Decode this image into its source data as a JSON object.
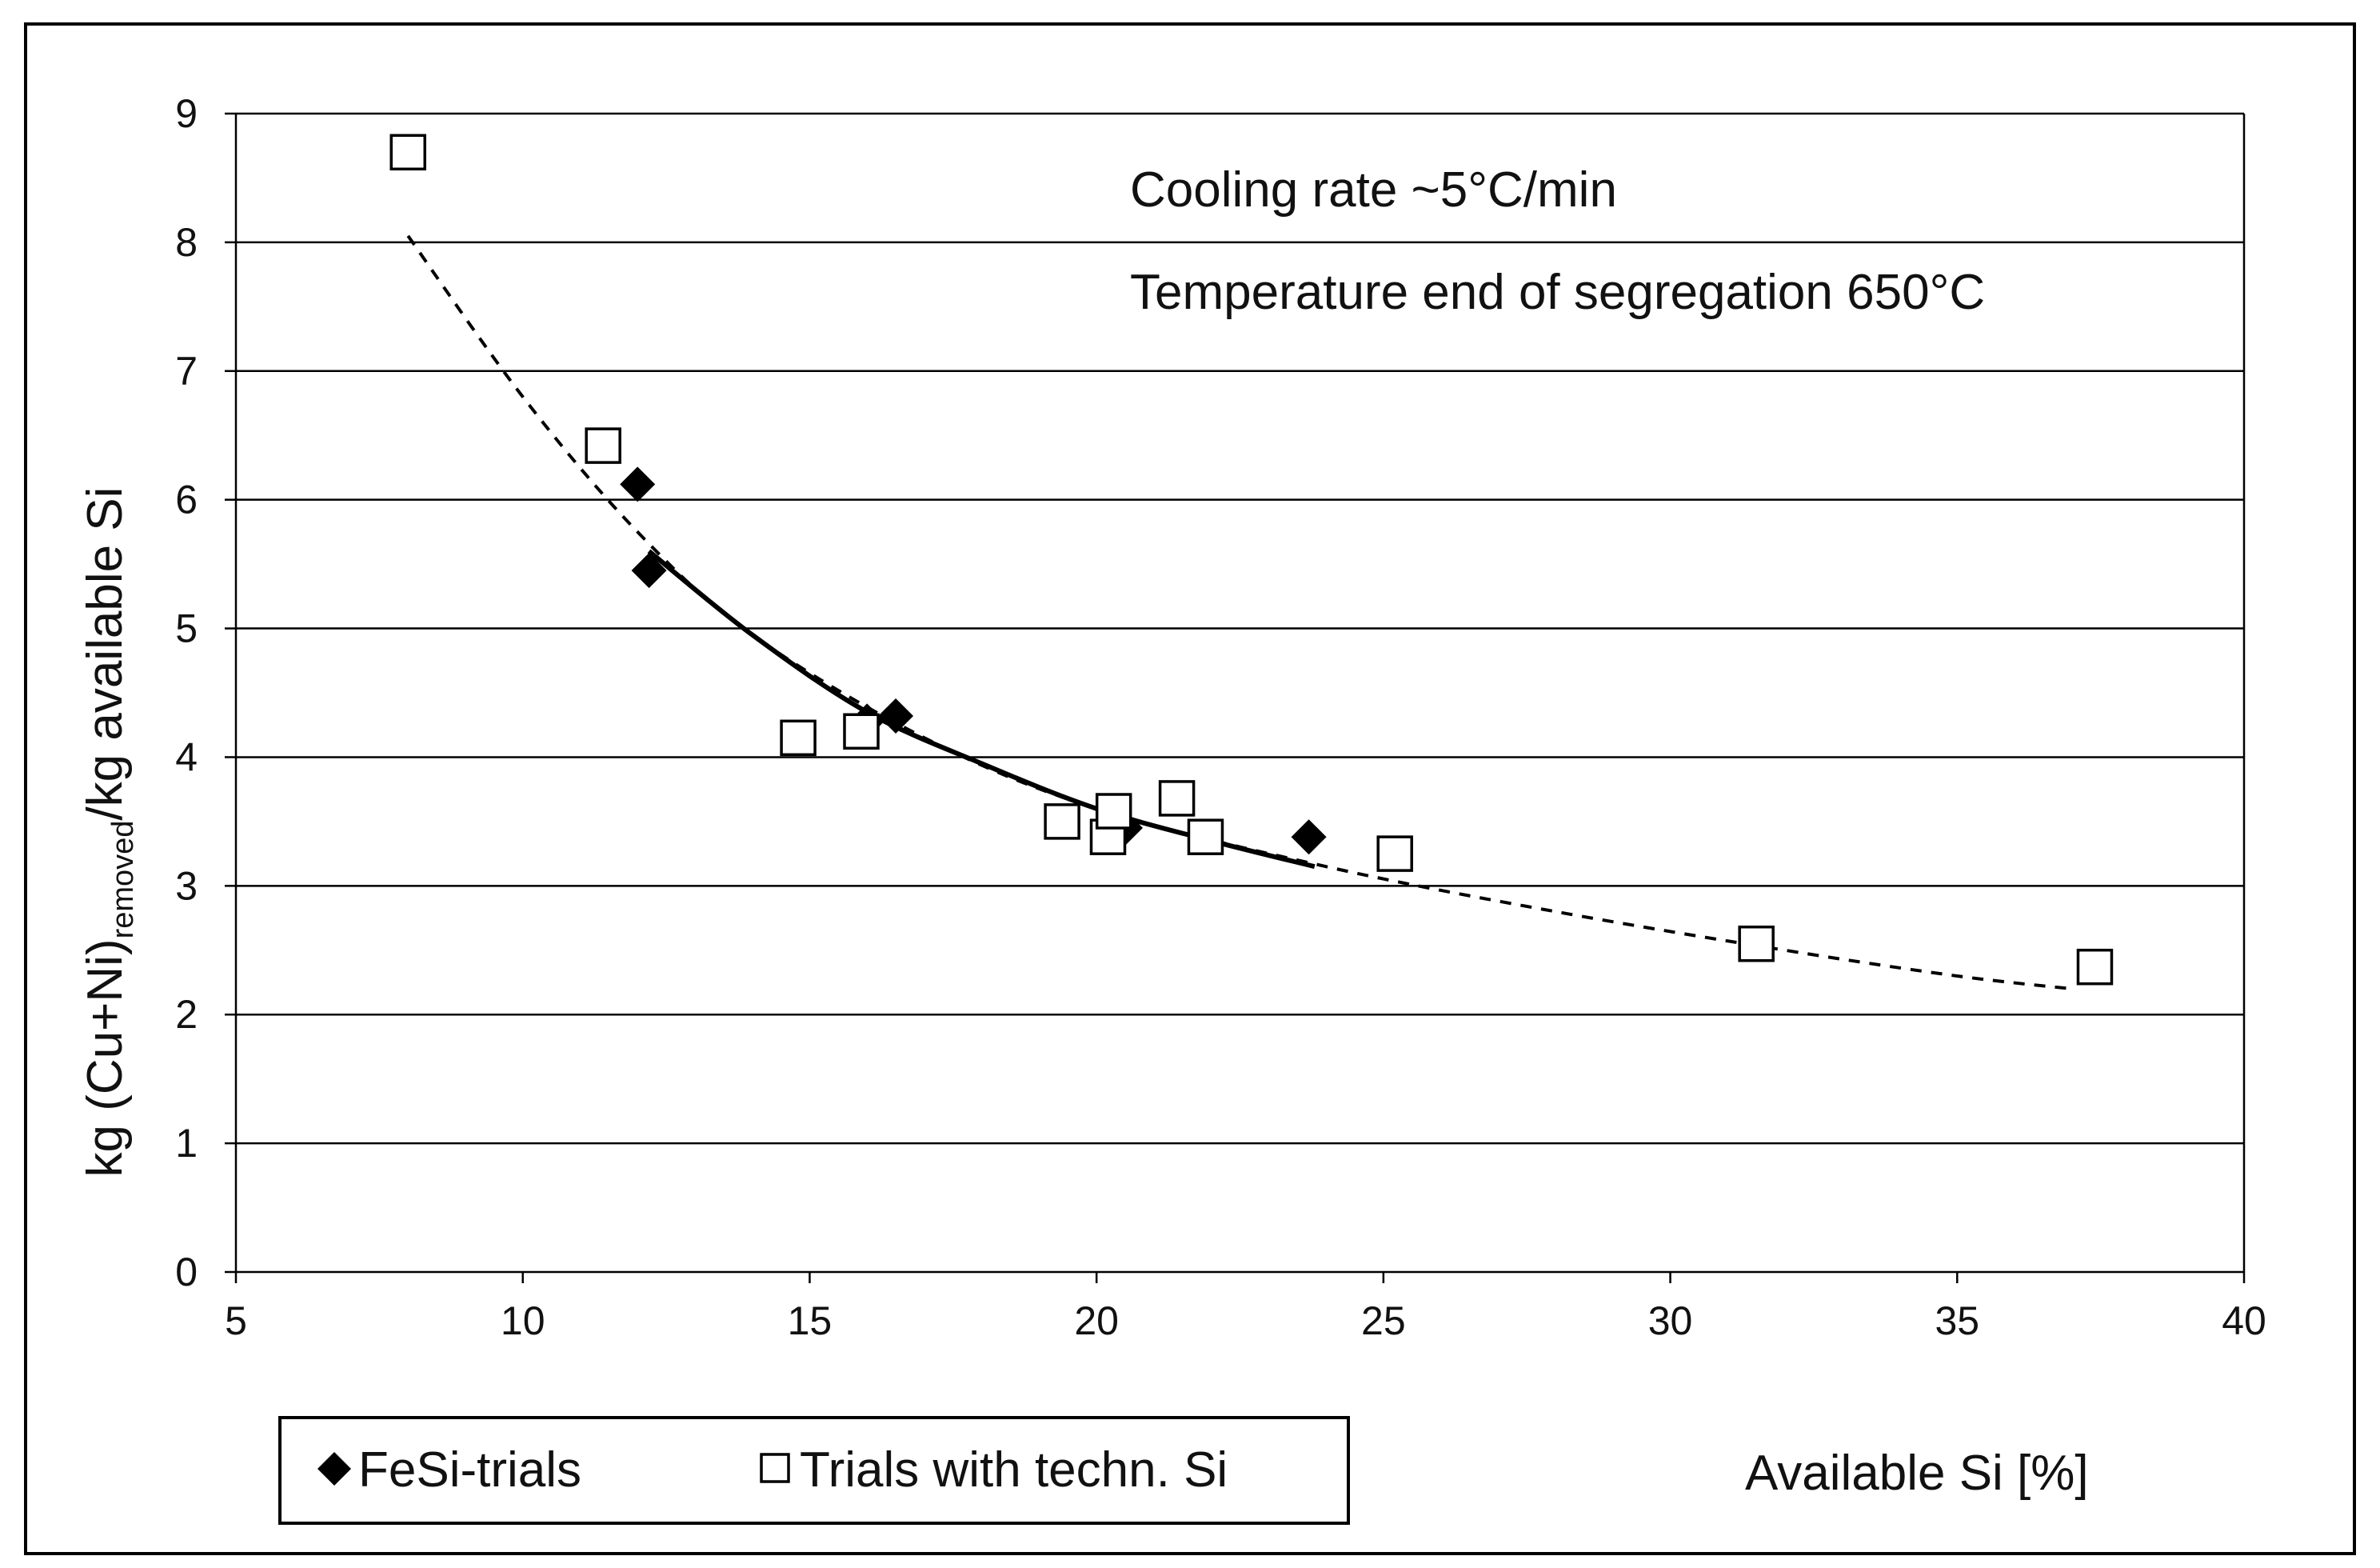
{
  "chart_data": {
    "type": "scatter",
    "title": "",
    "xlabel": "Available Si [%]",
    "ylabel_parts": {
      "main": "kg (Cu+Ni)",
      "sub": "removed",
      "tail": "/kg available Si"
    },
    "xlim": [
      5,
      40
    ],
    "ylim": [
      0,
      9
    ],
    "x_ticks": [
      5,
      10,
      15,
      20,
      25,
      30,
      35,
      40
    ],
    "y_ticks": [
      0,
      1,
      2,
      3,
      4,
      5,
      6,
      7,
      8,
      9
    ],
    "grid": "horizontal",
    "annotations": [
      "Cooling rate ~5°C/min",
      "Temperature end of segregation 650°C"
    ],
    "legend_position": "bottom-left",
    "series": [
      {
        "name": "FeSi-trials",
        "marker": "filled-diamond",
        "points": [
          {
            "x": 12.0,
            "y": 6.12
          },
          {
            "x": 12.2,
            "y": 5.45
          },
          {
            "x": 16.0,
            "y": 4.28
          },
          {
            "x": 16.5,
            "y": 4.32
          },
          {
            "x": 20.5,
            "y": 3.45
          },
          {
            "x": 23.7,
            "y": 3.38
          }
        ]
      },
      {
        "name": "Trials with techn. Si",
        "marker": "open-square",
        "points": [
          {
            "x": 8.0,
            "y": 8.7
          },
          {
            "x": 11.4,
            "y": 6.42
          },
          {
            "x": 14.8,
            "y": 4.15
          },
          {
            "x": 15.9,
            "y": 4.2
          },
          {
            "x": 19.4,
            "y": 3.5
          },
          {
            "x": 20.2,
            "y": 3.38
          },
          {
            "x": 20.3,
            "y": 3.58
          },
          {
            "x": 21.4,
            "y": 3.68
          },
          {
            "x": 21.9,
            "y": 3.38
          },
          {
            "x": 25.2,
            "y": 3.25
          },
          {
            "x": 31.5,
            "y": 2.55
          },
          {
            "x": 37.4,
            "y": 2.37
          }
        ]
      }
    ],
    "trendlines": [
      {
        "name": "FeSi-trials fit",
        "style": "solid",
        "points": [
          {
            "x": 12.2,
            "y": 5.6
          },
          {
            "x": 14,
            "y": 4.95
          },
          {
            "x": 16,
            "y": 4.35
          },
          {
            "x": 18,
            "y": 3.95
          },
          {
            "x": 20,
            "y": 3.6
          },
          {
            "x": 22,
            "y": 3.35
          },
          {
            "x": 23.8,
            "y": 3.15
          }
        ]
      },
      {
        "name": "Trials with techn. Si fit",
        "style": "dashed",
        "points": [
          {
            "x": 8.0,
            "y": 8.05
          },
          {
            "x": 10,
            "y": 6.8
          },
          {
            "x": 12,
            "y": 5.75
          },
          {
            "x": 14,
            "y": 4.95
          },
          {
            "x": 17,
            "y": 4.15
          },
          {
            "x": 20,
            "y": 3.6
          },
          {
            "x": 24,
            "y": 3.15
          },
          {
            "x": 28,
            "y": 2.8
          },
          {
            "x": 32,
            "y": 2.5
          },
          {
            "x": 35,
            "y": 2.3
          },
          {
            "x": 37,
            "y": 2.2
          }
        ]
      }
    ]
  }
}
